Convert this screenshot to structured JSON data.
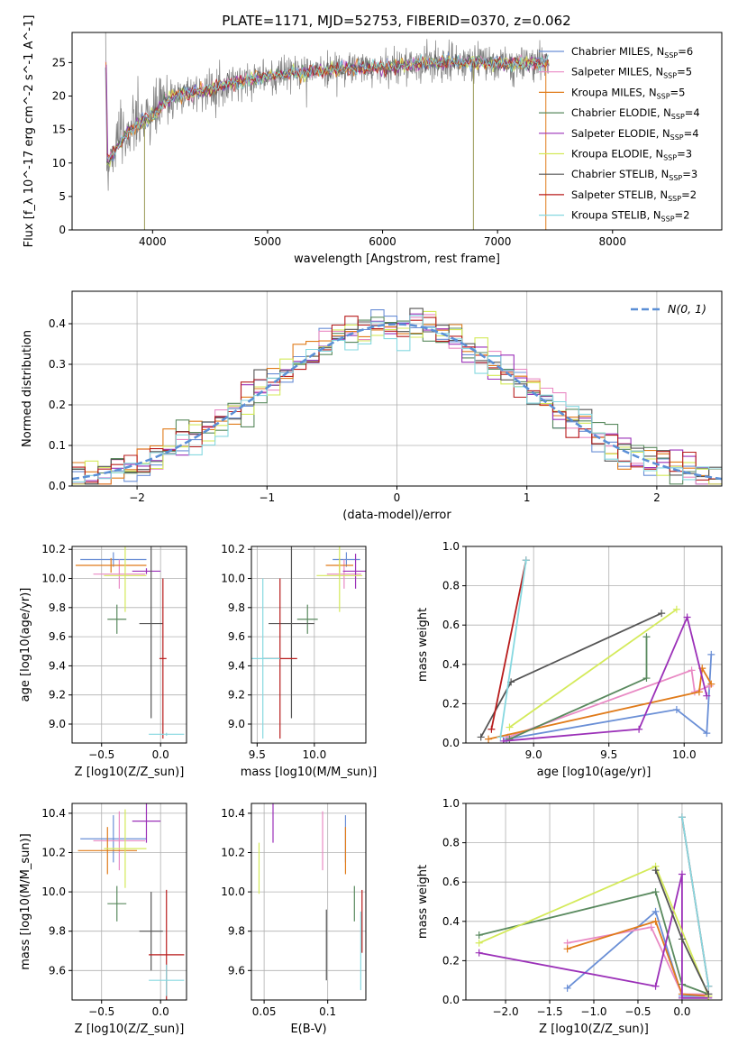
{
  "figure_title": "PLATE=1171, MJD=52753, FIBERID=0370, z=0.062",
  "colors": {
    "c_chab_miles": "#6a8fd6",
    "c_salp_miles": "#e98ac4",
    "c_krou_miles": "#e07b1a",
    "c_chab_elodie": "#5a8a5f",
    "c_salp_elodie": "#9b30b8",
    "c_krou_elodie": "#d4ea5a",
    "c_chab_stelib": "#555555",
    "c_salp_stelib": "#b81c1c",
    "c_krou_stelib": "#86d8e0",
    "spectrum": "#7f7f7f",
    "gauss": "#5b8fd6"
  },
  "chart_data": [
    {
      "type": "line",
      "panel": "spectrum",
      "xlabel": "wavelength [Angstrom, rest frame]",
      "ylabel": "Flux [f_λ 10^-17 erg cm^-2 s^-1 A^-1]",
      "xlim": [
        3300,
        8950
      ],
      "ylim": [
        0,
        29.5
      ],
      "xticks": [
        4000,
        5000,
        6000,
        7000,
        8000
      ],
      "yticks": [
        0,
        5,
        10,
        15,
        20,
        25
      ],
      "legend_position": "upper-right",
      "legend": [
        {
          "label": "Chabrier MILES, N",
          "sub": "SSP",
          "tail": "=6",
          "color_key": "c_chab_miles"
        },
        {
          "label": "Salpeter MILES, N",
          "sub": "SSP",
          "tail": "=5",
          "color_key": "c_salp_miles"
        },
        {
          "label": "Kroupa MILES, N",
          "sub": "SSP",
          "tail": "=5",
          "color_key": "c_krou_miles"
        },
        {
          "label": "Chabrier ELODIE, N",
          "sub": "SSP",
          "tail": "=4",
          "color_key": "c_chab_elodie"
        },
        {
          "label": "Salpeter ELODIE, N",
          "sub": "SSP",
          "tail": "=4",
          "color_key": "c_salp_elodie"
        },
        {
          "label": "Kroupa ELODIE, N",
          "sub": "SSP",
          "tail": "=3",
          "color_key": "c_krou_elodie"
        },
        {
          "label": "Chabrier STELIB, N",
          "sub": "SSP",
          "tail": "=3",
          "color_key": "c_chab_stelib"
        },
        {
          "label": "Salpeter STELIB, N",
          "sub": "SSP",
          "tail": "=2",
          "color_key": "c_salp_stelib"
        },
        {
          "label": "Kroupa STELIB, N",
          "sub": "SSP",
          "tail": "=2",
          "color_key": "c_krou_stelib"
        }
      ],
      "continuum": [
        [
          3600,
          10
        ],
        [
          3700,
          12.5
        ],
        [
          3800,
          15
        ],
        [
          3900,
          16
        ],
        [
          4000,
          17
        ],
        [
          4100,
          19
        ],
        [
          4200,
          20
        ],
        [
          4300,
          20.5
        ],
        [
          4500,
          21
        ],
        [
          4700,
          22
        ],
        [
          5000,
          23
        ],
        [
          5300,
          23.5
        ],
        [
          5600,
          24
        ],
        [
          5900,
          24.3
        ],
        [
          6200,
          24.6
        ],
        [
          6500,
          25
        ],
        [
          6800,
          25
        ],
        [
          7100,
          24.8
        ],
        [
          7400,
          25
        ],
        [
          7700,
          25
        ],
        [
          8000,
          25.1
        ],
        [
          8300,
          25
        ],
        [
          8600,
          25
        ]
      ],
      "spikes": [
        {
          "x": 3930,
          "y": 0
        },
        {
          "x": 6790,
          "y": 0
        },
        {
          "x": 7420,
          "y": 0
        }
      ]
    },
    {
      "type": "bar",
      "panel": "residual-histogram",
      "xlabel": "(data-model)/error",
      "ylabel": "Normed distribution",
      "xlim": [
        -2.5,
        2.5
      ],
      "ylim": [
        0,
        0.48
      ],
      "xticks": [
        -2,
        -1,
        0,
        1,
        2
      ],
      "yticks": [
        0.0,
        0.1,
        0.2,
        0.3,
        0.4
      ],
      "bin_width": 0.1,
      "legend": [
        {
          "label": "N(0, 1)",
          "style": "dashed"
        }
      ]
    },
    {
      "type": "scatter",
      "panel": "age-vs-Z",
      "xlabel": "Z [log10(Z/Z_sun)]",
      "ylabel": "age  [log10(age/yr)]",
      "xlim": [
        -0.75,
        0.22
      ],
      "ylim": [
        8.87,
        10.22
      ],
      "xticks": [
        -0.5,
        0.0
      ],
      "yticks": [
        9.0,
        9.2,
        9.4,
        9.6,
        9.8,
        10.0,
        10.2
      ],
      "points": [
        {
          "color_key": "c_chab_miles",
          "x": -0.4,
          "xerr": 0.28,
          "y": 10.13,
          "yerr": 0.05
        },
        {
          "color_key": "c_salp_miles",
          "x": -0.35,
          "xerr": 0.22,
          "y": 10.03,
          "yerr": 0.1
        },
        {
          "color_key": "c_krou_miles",
          "x": -0.42,
          "xerr": 0.3,
          "y": 10.09,
          "yerr": 0.05
        },
        {
          "color_key": "c_chab_elodie",
          "x": -0.37,
          "xerr": 0.08,
          "y": 9.72,
          "yerr": 0.1
        },
        {
          "color_key": "c_salp_elodie",
          "x": -0.12,
          "xerr": 0.12,
          "y": 10.05,
          "yerr": 0.02
        },
        {
          "color_key": "c_krou_elodie",
          "x": -0.3,
          "xerr": 0.18,
          "y": 10.02,
          "yerr": 0.25
        },
        {
          "color_key": "c_chab_stelib",
          "x": -0.08,
          "xerr": 0.1,
          "y": 9.69,
          "yerr": 0.65
        },
        {
          "color_key": "c_salp_stelib",
          "x": 0.02,
          "xerr": 0.03,
          "y": 9.45,
          "yerr": 0.55
        },
        {
          "color_key": "c_krou_stelib",
          "x": 0.05,
          "xerr": 0.15,
          "y": 8.93,
          "yerr": 0.01
        }
      ]
    },
    {
      "type": "scatter",
      "panel": "age-vs-mass",
      "xlabel": "mass [log10(M/M_sun)]",
      "ylabel": "",
      "xlim": [
        9.45,
        10.45
      ],
      "ylim": [
        8.87,
        10.22
      ],
      "xticks": [
        9.5,
        10.0
      ],
      "yticks": [
        9.0,
        9.2,
        9.4,
        9.6,
        9.8,
        10.0,
        10.2
      ],
      "points": [
        {
          "color_key": "c_chab_miles",
          "x": 10.28,
          "xerr": 0.12,
          "y": 10.13,
          "yerr": 0.05
        },
        {
          "color_key": "c_salp_miles",
          "x": 10.26,
          "xerr": 0.15,
          "y": 10.03,
          "yerr": 0.1
        },
        {
          "color_key": "c_krou_miles",
          "x": 10.22,
          "xerr": 0.12,
          "y": 10.09,
          "yerr": 0.05
        },
        {
          "color_key": "c_chab_elodie",
          "x": 9.94,
          "xerr": 0.09,
          "y": 9.72,
          "yerr": 0.1
        },
        {
          "color_key": "c_salp_elodie",
          "x": 10.36,
          "xerr": 0.11,
          "y": 10.05,
          "yerr": 0.12
        },
        {
          "color_key": "c_krou_elodie",
          "x": 10.22,
          "xerr": 0.2,
          "y": 10.02,
          "yerr": 0.25
        },
        {
          "color_key": "c_chab_stelib",
          "x": 9.8,
          "xerr": 0.2,
          "y": 9.69,
          "yerr": 0.65
        },
        {
          "color_key": "c_salp_stelib",
          "x": 9.7,
          "xerr": 0.15,
          "y": 9.45,
          "yerr": 0.55
        },
        {
          "color_key": "c_krou_stelib",
          "x": 9.55,
          "xerr": 0.15,
          "y": 9.45,
          "yerr": 0.55
        }
      ]
    },
    {
      "type": "line",
      "panel": "massweight-vs-age",
      "xlabel": "age  [log10(age/yr)]",
      "ylabel": "mass weight",
      "xlim": [
        8.55,
        10.25
      ],
      "ylim": [
        0,
        1.0
      ],
      "xticks": [
        9.0,
        9.5,
        10.0
      ],
      "yticks": [
        0.0,
        0.2,
        0.4,
        0.6,
        0.8,
        1.0
      ],
      "series": [
        {
          "color_key": "c_chab_miles",
          "points": [
            [
              8.82,
              0.02
            ],
            [
              9.95,
              0.17
            ],
            [
              10.15,
              0.05
            ],
            [
              10.18,
              0.45
            ]
          ]
        },
        {
          "color_key": "c_salp_miles",
          "points": [
            [
              8.83,
              0.03
            ],
            [
              10.05,
              0.37
            ],
            [
              10.07,
              0.26
            ],
            [
              10.17,
              0.29
            ]
          ]
        },
        {
          "color_key": "c_krou_miles",
          "points": [
            [
              8.7,
              0.02
            ],
            [
              10.1,
              0.26
            ],
            [
              10.12,
              0.38
            ],
            [
              10.18,
              0.3
            ]
          ]
        },
        {
          "color_key": "c_chab_elodie",
          "points": [
            [
              8.84,
              0.02
            ],
            [
              9.75,
              0.33
            ],
            [
              9.75,
              0.54
            ]
          ]
        },
        {
          "color_key": "c_salp_elodie",
          "points": [
            [
              8.8,
              0.01
            ],
            [
              9.7,
              0.07
            ],
            [
              10.02,
              0.64
            ],
            [
              10.15,
              0.24
            ]
          ]
        },
        {
          "color_key": "c_krou_elodie",
          "points": [
            [
              8.84,
              0.08
            ],
            [
              9.95,
              0.68
            ]
          ]
        },
        {
          "color_key": "c_chab_stelib",
          "points": [
            [
              8.65,
              0.03
            ],
            [
              8.85,
              0.31
            ],
            [
              9.85,
              0.66
            ]
          ]
        },
        {
          "color_key": "c_salp_stelib",
          "points": [
            [
              8.72,
              0.07
            ],
            [
              8.95,
              0.93
            ]
          ]
        },
        {
          "color_key": "c_krou_stelib",
          "points": [
            [
              8.78,
              0.03
            ],
            [
              8.95,
              0.93
            ]
          ]
        }
      ]
    },
    {
      "type": "scatter",
      "panel": "mass-vs-Z",
      "xlabel": "Z [log10(Z/Z_sun)]",
      "ylabel": "mass [log10(M/M_sun)]",
      "xlim": [
        -0.75,
        0.22
      ],
      "ylim": [
        9.45,
        10.45
      ],
      "xticks": [
        -0.5,
        0.0
      ],
      "yticks": [
        9.6,
        9.8,
        10.0,
        10.2,
        10.4
      ],
      "points": [
        {
          "color_key": "c_chab_miles",
          "x": -0.4,
          "xerr": 0.28,
          "y": 10.27,
          "yerr": 0.12
        },
        {
          "color_key": "c_salp_miles",
          "x": -0.35,
          "xerr": 0.22,
          "y": 10.26,
          "yerr": 0.15
        },
        {
          "color_key": "c_krou_miles",
          "x": -0.45,
          "xerr": 0.25,
          "y": 10.21,
          "yerr": 0.12
        },
        {
          "color_key": "c_chab_elodie",
          "x": -0.37,
          "xerr": 0.08,
          "y": 9.94,
          "yerr": 0.09
        },
        {
          "color_key": "c_salp_elodie",
          "x": -0.12,
          "xerr": 0.12,
          "y": 10.36,
          "yerr": 0.11
        },
        {
          "color_key": "c_krou_elodie",
          "x": -0.3,
          "xerr": 0.18,
          "y": 10.22,
          "yerr": 0.2
        },
        {
          "color_key": "c_chab_stelib",
          "x": -0.08,
          "xerr": 0.1,
          "y": 9.8,
          "yerr": 0.2
        },
        {
          "color_key": "c_salp_stelib",
          "x": 0.05,
          "xerr": 0.15,
          "y": 9.68,
          "yerr": 0.33
        },
        {
          "color_key": "c_krou_stelib",
          "x": 0.05,
          "xerr": 0.15,
          "y": 9.55,
          "yerr": 0.08
        }
      ]
    },
    {
      "type": "scatter",
      "panel": "mass-vs-EBV",
      "xlabel": "E(B-V)",
      "ylabel": "",
      "xlim": [
        0.04,
        0.13
      ],
      "ylim": [
        9.45,
        10.45
      ],
      "xticks": [
        0.05,
        0.1
      ],
      "yticks": [
        9.6,
        9.8,
        10.0,
        10.2,
        10.4
      ],
      "points": [
        {
          "color_key": "c_chab_miles",
          "x": 0.114,
          "y": 10.27,
          "yerr": 0.12
        },
        {
          "color_key": "c_salp_miles",
          "x": 0.096,
          "y": 10.26,
          "yerr": 0.15
        },
        {
          "color_key": "c_krou_miles",
          "x": 0.114,
          "y": 10.21,
          "yerr": 0.12
        },
        {
          "color_key": "c_chab_elodie",
          "x": 0.121,
          "y": 9.94,
          "yerr": 0.09
        },
        {
          "color_key": "c_salp_elodie",
          "x": 0.057,
          "y": 10.36,
          "yerr": 0.11
        },
        {
          "color_key": "c_krou_elodie",
          "x": 0.046,
          "y": 10.12,
          "yerr": 0.13
        },
        {
          "color_key": "c_chab_stelib",
          "x": 0.099,
          "y": 9.73,
          "yerr": 0.18
        },
        {
          "color_key": "c_salp_stelib",
          "x": 0.127,
          "y": 9.85,
          "yerr": 0.16
        },
        {
          "color_key": "c_krou_stelib",
          "x": 0.126,
          "y": 9.7,
          "yerr": 0.2
        }
      ]
    },
    {
      "type": "line",
      "panel": "massweight-vs-Z",
      "xlabel": "Z [log10(Z/Z_sun)]",
      "ylabel": "mass weight",
      "xlim": [
        -2.45,
        0.45
      ],
      "ylim": [
        0,
        1.0
      ],
      "xticks": [
        -2.0,
        -1.5,
        -1.0,
        -0.5,
        0.0
      ],
      "yticks": [
        0.0,
        0.2,
        0.4,
        0.6,
        0.8,
        1.0
      ],
      "series": [
        {
          "color_key": "c_chab_miles",
          "points": [
            [
              -1.3,
              0.06
            ],
            [
              -0.3,
              0.45
            ],
            [
              0.0,
              0.02
            ],
            [
              0.3,
              0.02
            ]
          ]
        },
        {
          "color_key": "c_salp_miles",
          "points": [
            [
              -1.3,
              0.29
            ],
            [
              -0.35,
              0.37
            ],
            [
              0.0,
              0.03
            ],
            [
              0.3,
              0.03
            ]
          ]
        },
        {
          "color_key": "c_krou_miles",
          "points": [
            [
              -1.3,
              0.26
            ],
            [
              -0.3,
              0.4
            ],
            [
              0.0,
              0.03
            ],
            [
              0.3,
              0.02
            ]
          ]
        },
        {
          "color_key": "c_chab_elodie",
          "points": [
            [
              -2.3,
              0.33
            ],
            [
              -0.3,
              0.55
            ],
            [
              0.0,
              0.08
            ],
            [
              0.3,
              0.03
            ]
          ]
        },
        {
          "color_key": "c_salp_elodie",
          "points": [
            [
              -2.3,
              0.24
            ],
            [
              -0.3,
              0.07
            ],
            [
              0.0,
              0.64
            ],
            [
              0.0,
              0.01
            ],
            [
              0.3,
              0.01
            ]
          ]
        },
        {
          "color_key": "c_krou_elodie",
          "points": [
            [
              -2.3,
              0.29
            ],
            [
              -0.3,
              0.68
            ],
            [
              0.3,
              0.02
            ]
          ]
        },
        {
          "color_key": "c_chab_stelib",
          "points": [
            [
              -0.3,
              0.66
            ],
            [
              0.0,
              0.31
            ],
            [
              0.3,
              0.03
            ]
          ]
        },
        {
          "color_key": "c_salp_stelib",
          "points": [
            [
              0.0,
              0.93
            ],
            [
              0.3,
              0.07
            ]
          ]
        },
        {
          "color_key": "c_krou_stelib",
          "points": [
            [
              0.0,
              0.93
            ],
            [
              0.3,
              0.07
            ]
          ]
        }
      ]
    }
  ]
}
